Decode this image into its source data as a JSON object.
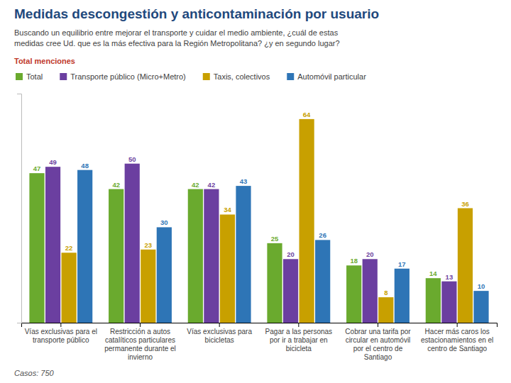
{
  "chart_data": {
    "type": "bar",
    "title": "Medidas descongestión y anticontaminación por usuario",
    "subtitle": "Buscando un equilibrio entre mejorar el transporte y cuidar el medio ambiente, ¿cuál de estas\nmedidas cree Ud. que es la más efectiva para la Región Metropolitana? ¿y en segundo lugar?",
    "annotations": [
      "Total menciones",
      "Casos: 750"
    ],
    "categories": [
      "Vías exclusivas para el\ntransporte público",
      "Restricción a autos\ncatalíticos particulares\npermanente durante el\ninvierno",
      "Vías exclusivas para\nbicicletas",
      "Pagar a las personas\npor ir a trabajar en\nbicicleta",
      "Cobrar una tarifa por\ncircular en automóvil\npor el centro de\nSantiago",
      "Hacer más caros los\nestacionamientos en el\ncentro de Santiago"
    ],
    "series": [
      {
        "name": "Total",
        "color": "#6aaa2e",
        "values": [
          47,
          42,
          42,
          25,
          18,
          14
        ]
      },
      {
        "name": "Transporte público (Micro+Metro)",
        "color": "#6b3fa0",
        "values": [
          49,
          50,
          42,
          20,
          20,
          13
        ]
      },
      {
        "name": "Taxis, colectivos",
        "color": "#c8a000",
        "values": [
          22,
          23,
          34,
          64,
          8,
          36
        ]
      },
      {
        "name": "Automóvil particular",
        "color": "#2e75b6",
        "values": [
          48,
          30,
          43,
          26,
          17,
          10
        ]
      }
    ],
    "ylim": [
      0,
      72
    ],
    "grid": false,
    "legend": "top",
    "data_labels": true,
    "tick_labels": "x"
  }
}
